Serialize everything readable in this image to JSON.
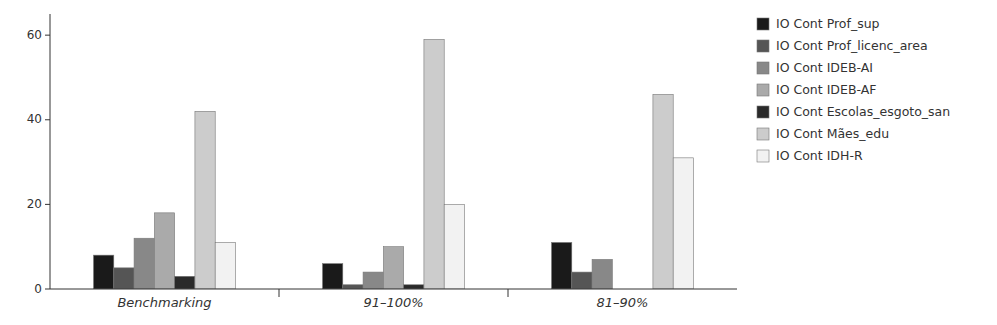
{
  "chart_data": {
    "type": "bar",
    "categories": [
      "Benchmarking",
      "91–100%",
      "81–90%"
    ],
    "series": [
      {
        "name": "IO Cont Prof_sup",
        "color": "#1a1a1a",
        "values": [
          8,
          6,
          11
        ]
      },
      {
        "name": "IO Cont Prof_licenc_area",
        "color": "#555555",
        "values": [
          5,
          1,
          4
        ]
      },
      {
        "name": "IO Cont IDEB-AI",
        "color": "#888888",
        "values": [
          12,
          4,
          7
        ]
      },
      {
        "name": "IO Cont IDEB-AF",
        "color": "#aaaaaa",
        "values": [
          18,
          10,
          0
        ]
      },
      {
        "name": "IO Cont Escolas_esgoto_san",
        "color": "#2a2a2a",
        "values": [
          3,
          1,
          0
        ]
      },
      {
        "name": "IO Cont Mães_edu",
        "color": "#cccccc",
        "values": [
          42,
          59,
          46
        ]
      },
      {
        "name": "IO Cont IDH-R",
        "color": "#f2f2f2",
        "values": [
          11,
          20,
          31
        ]
      }
    ],
    "ylim": [
      0,
      65
    ],
    "yticks": [
      0,
      20,
      40,
      60
    ],
    "grid": false,
    "legend": "right"
  }
}
